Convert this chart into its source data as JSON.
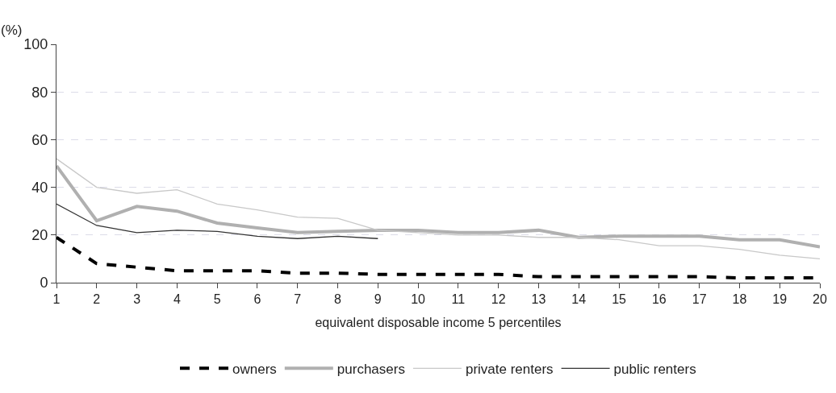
{
  "chart_data": {
    "type": "line",
    "ylabel": "(%)",
    "xlabel": "equivalent disposable income 5 percentiles",
    "x": [
      1,
      2,
      3,
      4,
      5,
      6,
      7,
      8,
      9,
      10,
      11,
      12,
      13,
      14,
      15,
      16,
      17,
      18,
      19,
      20
    ],
    "xlim": [
      1,
      20
    ],
    "xticks": [
      1,
      2,
      3,
      4,
      5,
      6,
      7,
      8,
      9,
      10,
      11,
      12,
      13,
      14,
      15,
      16,
      17,
      18,
      19,
      20
    ],
    "ylim": [
      0,
      100
    ],
    "yticks": [
      0,
      20,
      40,
      60,
      80,
      100
    ],
    "grid": "y",
    "legend": "bottom",
    "marker": "none",
    "series": [
      {
        "name": "owners",
        "color": "#000000",
        "line_style": "dashed",
        "values": [
          19,
          8,
          6.5,
          5,
          5,
          5,
          4,
          4,
          3.5,
          3.5,
          3.5,
          3.5,
          2.5,
          2.5,
          2.5,
          2.5,
          2.5,
          2,
          2,
          2
        ]
      },
      {
        "name": "purchasers",
        "color": "#b0b0b0",
        "values": [
          49,
          26,
          32,
          30,
          25,
          23,
          21,
          21.5,
          22,
          22,
          21,
          21,
          22,
          19,
          19.5,
          19.5,
          19.5,
          18,
          18,
          15
        ]
      },
      {
        "name": "private renters",
        "color": "#c8c8c8",
        "values": [
          52,
          40,
          37.5,
          39,
          33,
          30.5,
          27.5,
          27,
          22,
          21,
          20,
          20,
          19,
          19,
          18,
          15.5,
          15.5,
          14,
          11.5,
          10
        ]
      },
      {
        "name": "public renters",
        "color": "#333333",
        "values": [
          33,
          24,
          21,
          22,
          21.5,
          19.5,
          18.5,
          19.5,
          18.5,
          null,
          null,
          null,
          null,
          null,
          null,
          null,
          null,
          null,
          null,
          null
        ]
      }
    ]
  }
}
